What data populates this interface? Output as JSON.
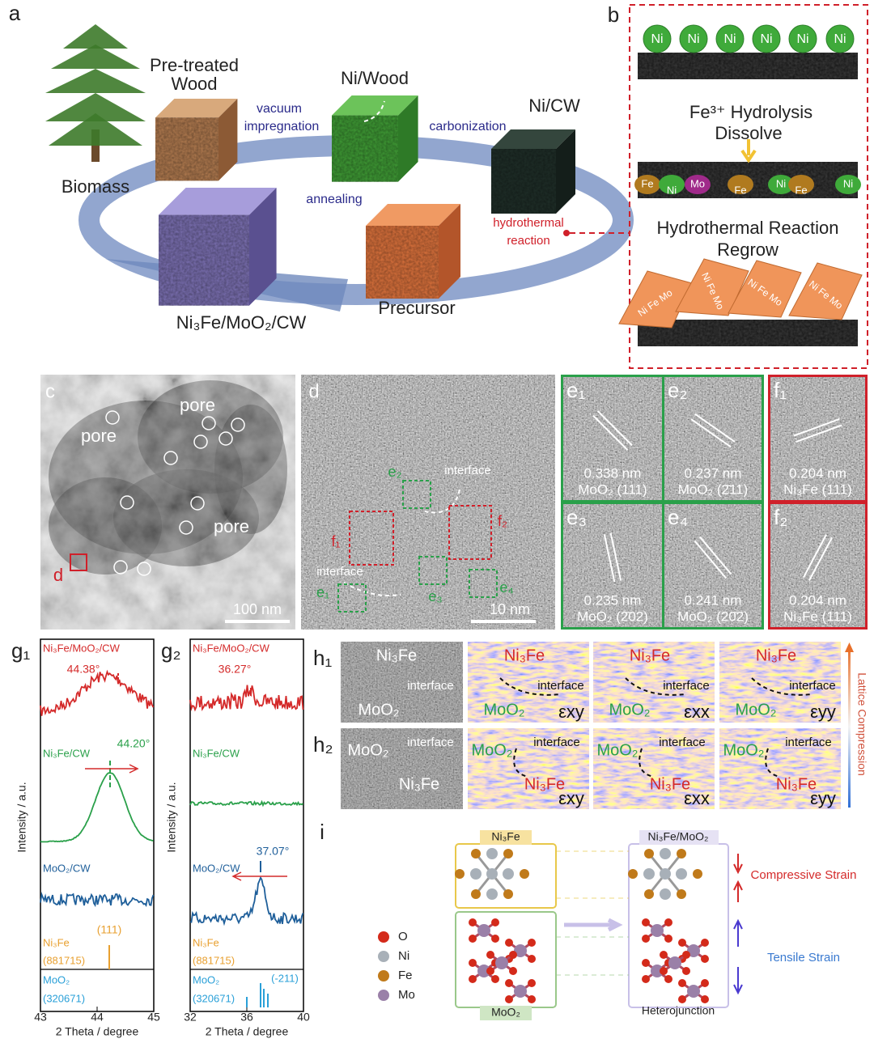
{
  "a": {
    "label": "a",
    "biomass": "Biomass",
    "pretreated": [
      "Pre-treated",
      "Wood"
    ],
    "ni_wood": "Ni/Wood",
    "ni_cw": "Ni/CW",
    "vacuum": [
      "vacuum",
      "impregnation"
    ],
    "carbonization": "carbonization",
    "hydrothermal": [
      "hydrothermal",
      "reaction"
    ],
    "annealing": "annealing",
    "precursor": "Precursor",
    "product": "Ni₃Fe/MoO₂/CW"
  },
  "b": {
    "label": "b",
    "ni_top": [
      "Ni",
      "Ni",
      "Ni",
      "Ni",
      "Ni",
      "Ni"
    ],
    "step1": [
      "Fe³⁺ Hydrolysis",
      "Dissolve"
    ],
    "mid_labels": [
      "Fe",
      "Ni",
      "Mo",
      "Fe",
      "Ni",
      "Fe",
      "Ni"
    ],
    "step2": [
      "Hydrothermal Reaction",
      "Regrow"
    ],
    "crystals": [
      "Ni Fe Mo",
      "Ni Fe Mo",
      "Ni Fe Mo",
      "Ni Fe Mo"
    ]
  },
  "c": {
    "label": "c",
    "pores": [
      "pore",
      "pore",
      "pore"
    ],
    "region": "d",
    "scale": "100 nm"
  },
  "d": {
    "label": "d",
    "interfaces": [
      "interface",
      "interface"
    ],
    "boxes": [
      "e₂",
      "f₁",
      "f₂",
      "e₁",
      "e₃",
      "e₄"
    ],
    "scale": "10 nm"
  },
  "ef": [
    {
      "label": "e₁",
      "spacing": "0.338 nm",
      "plane": "MoO₂ (111)"
    },
    {
      "label": "e₂",
      "spacing": "0.237 nm",
      "plane": "MoO₂ (2̄11)"
    },
    {
      "label": "e₃",
      "spacing": "0.235 nm",
      "plane": "MoO₂ (2̄02)"
    },
    {
      "label": "e₄",
      "spacing": "0.241 nm",
      "plane": "MoO₂ (20̄2)"
    },
    {
      "label": "f₁",
      "spacing": "0.204 nm",
      "plane": "Ni₃Fe (111)"
    },
    {
      "label": "f₂",
      "spacing": "0.204 nm",
      "plane": "Ni₃Fe (111)"
    }
  ],
  "g": [
    {
      "label": "g₁",
      "ylabel": "Intensity / a.u.",
      "xlabel": "2 Theta / degree",
      "xticks": [
        43,
        44,
        45
      ],
      "series": [
        "Ni₃Fe/MoO₂/CW",
        "Ni₃Fe/CW",
        "MoO₂/CW"
      ],
      "peaks": [
        "44.38°",
        "44.20°"
      ],
      "ref_peak": "(111)",
      "ref1": [
        "Ni₃Fe",
        "(881715)"
      ],
      "ref2": [
        "MoO₂",
        "(320671)"
      ]
    },
    {
      "label": "g₂",
      "ylabel": "Intensity / a.u.",
      "xlabel": "2 Theta / degree",
      "xticks": [
        32,
        36,
        40
      ],
      "series": [
        "Ni₃Fe/MoO₂/CW",
        "Ni₃Fe/CW",
        "MoO₂/CW"
      ],
      "peaks": [
        "36.27°",
        "37.07°"
      ],
      "ref_peak": "(-211)",
      "ref1": [
        "Ni₃Fe",
        "(881715)"
      ],
      "ref2": [
        "MoO₂",
        "(320671)"
      ]
    }
  ],
  "h": {
    "colorbar": "Lattice Compression",
    "rows": [
      {
        "label": "h₁",
        "tem": {
          "top": "Ni₃Fe",
          "interface": "interface",
          "bottom": "MoO₂"
        },
        "maps": [
          {
            "top": "Ni₃Fe",
            "interface": "interface",
            "bottom": "MoO₂",
            "strain": "εxy"
          },
          {
            "top": "Ni₃Fe",
            "interface": "interface",
            "bottom": "MoO₂",
            "strain": "εxx"
          },
          {
            "top": "Ni₃Fe",
            "interface": "interface",
            "bottom": "MoO₂",
            "strain": "εyy"
          }
        ]
      },
      {
        "label": "h₂",
        "tem": {
          "top": "MoO₂",
          "interface": "interface",
          "bottom": "Ni₃Fe"
        },
        "maps": [
          {
            "top": "MoO₂",
            "interface": "interface",
            "bottom": "Ni₃Fe",
            "strain": "εxy"
          },
          {
            "top": "MoO₂",
            "interface": "interface",
            "bottom": "Ni₃Fe",
            "strain": "εxx"
          },
          {
            "top": "MoO₂",
            "interface": "interface",
            "bottom": "Ni₃Fe",
            "strain": "εyy"
          }
        ]
      }
    ]
  },
  "i": {
    "label": "i",
    "legend": [
      "O",
      "Ni",
      "Fe",
      "Mo"
    ],
    "left_top": "Ni₃Fe",
    "left_bottom": "MoO₂",
    "right_top": "Ni₃Fe/MoO₂",
    "right_bottom": "Heterojunction",
    "compressive": "Compressive Strain",
    "tensile": "Tensile Strain"
  }
}
